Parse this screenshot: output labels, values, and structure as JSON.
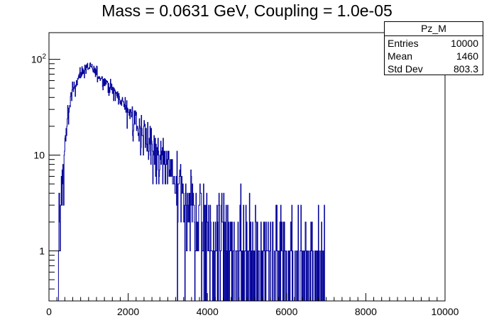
{
  "chart_data": {
    "type": "histogram",
    "title": "Mass = 0.0631 GeV, Coupling = 1.0e-05",
    "xlabel": "",
    "ylabel": "",
    "xlim": [
      0,
      10000
    ],
    "ylim": [
      0.3,
      190
    ],
    "yscale": "log",
    "grid": false,
    "x_ticks": [
      "0",
      "2000",
      "4000",
      "6000",
      "8000",
      "10000"
    ],
    "y_ticks": [
      "1",
      "10",
      "10^2"
    ],
    "bin_width": 10,
    "line_color": "#000099",
    "profile": {
      "x": [
        240,
        300,
        400,
        500,
        600,
        700,
        800,
        900,
        1000,
        1100,
        1200,
        1300,
        1400,
        1500,
        1600,
        1800,
        2000,
        2200,
        2400,
        2600,
        2800,
        3000,
        3200,
        3400,
        3600,
        3800,
        4000,
        4400,
        4800,
        5200,
        5600,
        6000,
        6400,
        6960
      ],
      "y": [
        1,
        3,
        12,
        30,
        48,
        60,
        70,
        80,
        82,
        78,
        72,
        66,
        60,
        54,
        48,
        38,
        30,
        22,
        17,
        12,
        9,
        7,
        5,
        3.5,
        2.8,
        2.2,
        1.8,
        1.4,
        1.1,
        0.9,
        0.8,
        0.7,
        0.6,
        0.5
      ]
    },
    "stats": {
      "name": "Pz_M",
      "entries_label": "Entries",
      "entries": "10000",
      "mean_label": "Mean",
      "mean": "1460",
      "stddev_label": "Std Dev",
      "stddev": "803.3"
    }
  }
}
